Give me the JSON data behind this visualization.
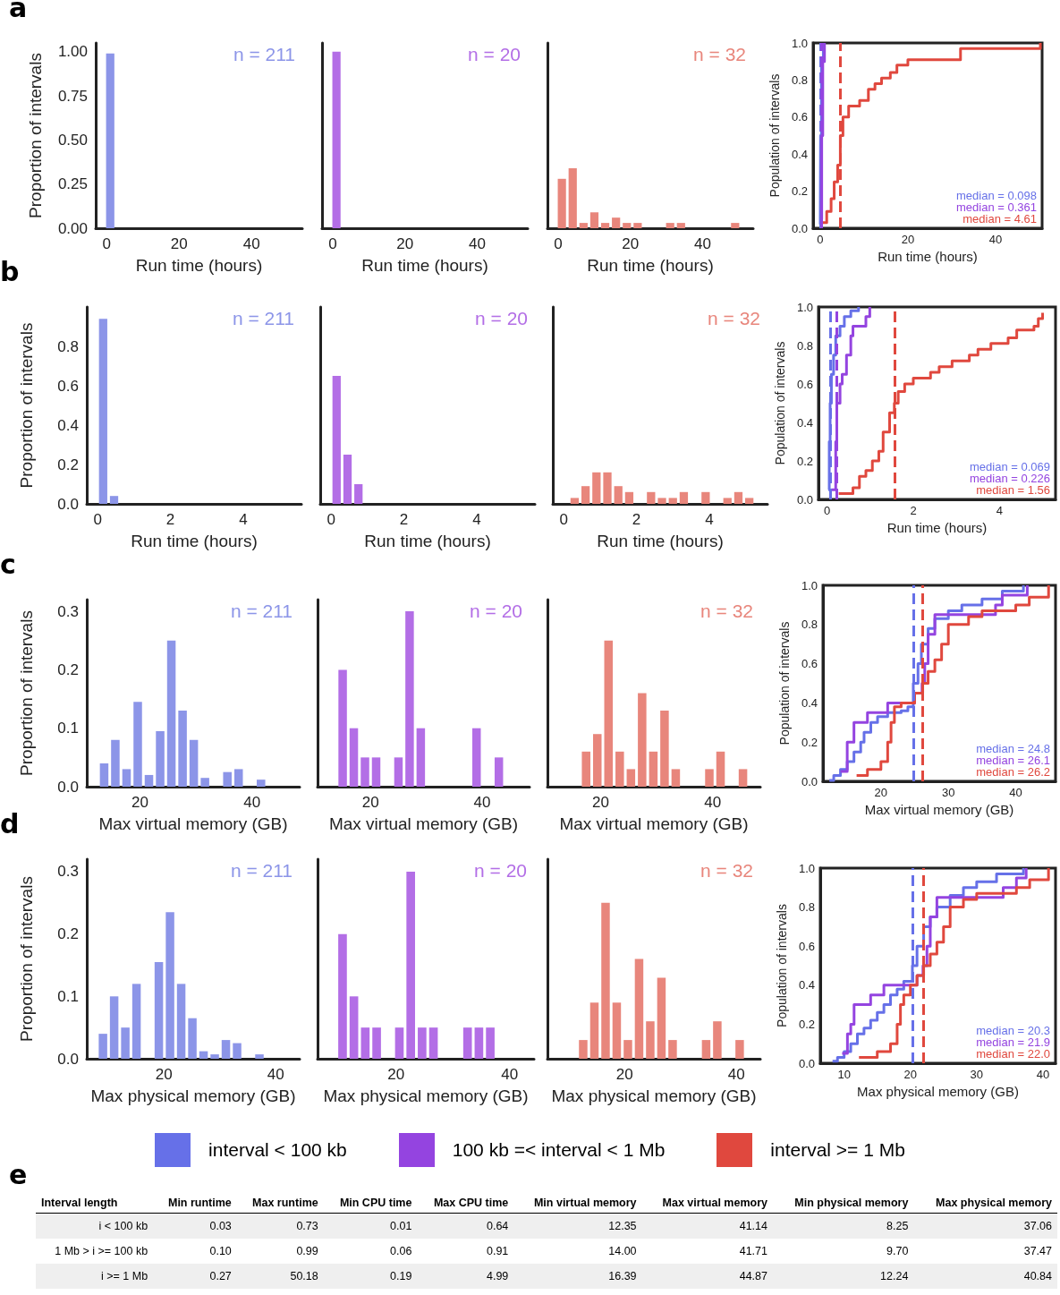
{
  "chart_data": [
    {
      "type": "histogram",
      "title": "a",
      "xlabel": "Run time (hours)",
      "ylabel": "Proportion of intervals",
      "xlim": [
        -3,
        54
      ],
      "xticks": [
        0,
        20,
        40
      ],
      "ylim": [
        0,
        1.05
      ],
      "yticks": [
        {
          "value": 0,
          "label": "0.00"
        },
        {
          "value": 0.25,
          "label": "0.25"
        },
        {
          "value": 0.5,
          "label": "0.50"
        },
        {
          "value": 0.75,
          "label": "0.75"
        },
        {
          "value": 1,
          "label": "1.00"
        }
      ],
      "annotations": [
        "n = 211"
      ],
      "bins": [
        -0.5,
        2.5
      ],
      "series": [
        {
          "color": "#8c95e8",
          "values": [
            0.99
          ]
        }
      ]
    },
    {
      "type": "histogram",
      "xlabel": "Run time (hours)",
      "xlim": [
        -3,
        54
      ],
      "xticks": [
        0,
        20,
        40
      ],
      "ylim": [
        0,
        1.05
      ],
      "tick_labels": "x",
      "annotations": [
        "n = 20"
      ],
      "bins": [
        -0.5,
        2.5
      ],
      "series": [
        {
          "color": "#b36ee6",
          "values": [
            1.0
          ]
        }
      ]
    },
    {
      "type": "histogram",
      "xlabel": "Run time (hours)",
      "xlim": [
        -3,
        54
      ],
      "xticks": [
        0,
        20,
        40
      ],
      "ylim": [
        0,
        1.05
      ],
      "tick_labels": "x",
      "annotations": [
        "n = 32"
      ],
      "bins": [
        -0.5,
        2.5,
        5.5,
        8.5,
        11.5,
        14.5,
        17.5,
        20.5,
        23.5,
        26.5,
        29.5,
        32.5,
        35.5,
        38.5,
        41.5,
        44.5,
        47.5,
        50.5
      ],
      "series": [
        {
          "color": "#e8867c",
          "values": [
            0.28,
            0.34,
            0.03,
            0.09,
            0.03,
            0.06,
            0.03,
            0.03,
            0,
            0,
            0.03,
            0.03,
            0,
            0,
            0,
            0,
            0.03
          ]
        }
      ]
    },
    {
      "type": "step",
      "xlabel": "Run time (hours)",
      "ylabel": "Population of intervals",
      "xlim": [
        -1.6,
        50.6
      ],
      "xticks": [
        0,
        20,
        40
      ],
      "ylim": [
        0,
        1
      ],
      "yticks": [
        {
          "value": 0,
          "label": "0.0"
        },
        0.2,
        0.4,
        0.6,
        0.8,
        {
          "value": 1,
          "label": "1.0"
        }
      ],
      "annotations": [
        "median = 0.098",
        "median = 0.361",
        "median = 4.61"
      ],
      "ref_lines": [
        {
          "axis": "x",
          "value": 0.098,
          "color": "#6670e8",
          "line_style": "dashed"
        },
        {
          "axis": "x",
          "value": 0.361,
          "color": "#9444e0",
          "line_style": "dashed"
        },
        {
          "axis": "x",
          "value": 4.61,
          "color": "#e0483e",
          "line_style": "dashed"
        }
      ],
      "series": [
        {
          "color": "#6670e8",
          "x": [
            0.03,
            0.1,
            0.3,
            0.73
          ],
          "values": [
            0.02,
            0.5,
            0.9,
            1.0
          ]
        },
        {
          "color": "#9444e0",
          "x": [
            0.1,
            0.36,
            0.6,
            0.99
          ],
          "values": [
            0.05,
            0.5,
            0.9,
            1.0
          ]
        },
        {
          "color": "#e0483e",
          "x": [
            0.27,
            1.5,
            2.5,
            3.2,
            4,
            4.6,
            5.2,
            6.5,
            9,
            11,
            12.5,
            14,
            16,
            17.5,
            20,
            32,
            50.2
          ],
          "values": [
            0.03,
            0.09,
            0.16,
            0.25,
            0.34,
            0.5,
            0.6,
            0.66,
            0.69,
            0.75,
            0.78,
            0.81,
            0.84,
            0.88,
            0.91,
            0.97,
            1.0
          ]
        }
      ]
    },
    {
      "type": "histogram",
      "title": "b",
      "xlabel": "Run time (hours)",
      "ylabel": "Proportion of intervals",
      "xlim": [
        -0.3,
        5.6
      ],
      "xticks": [
        0,
        2,
        4
      ],
      "ylim": [
        0,
        1
      ],
      "yticks": [
        {
          "value": 0,
          "label": "0.0"
        },
        0.2,
        0.4,
        0.6,
        0.8
      ],
      "annotations": [
        "n = 211"
      ],
      "bins": [
        0,
        0.3,
        0.6
      ],
      "series": [
        {
          "color": "#8c95e8",
          "values": [
            0.94,
            0.04
          ]
        }
      ]
    },
    {
      "type": "histogram",
      "xlabel": "Run time (hours)",
      "xlim": [
        -0.3,
        5.6
      ],
      "xticks": [
        0,
        2,
        4
      ],
      "ylim": [
        0,
        1
      ],
      "tick_labels": "x",
      "annotations": [
        "n = 20"
      ],
      "bins": [
        0,
        0.3,
        0.6,
        0.9
      ],
      "series": [
        {
          "color": "#b36ee6",
          "values": [
            0.65,
            0.25,
            0.1
          ]
        }
      ]
    },
    {
      "type": "histogram",
      "xlabel": "Run time (hours)",
      "xlim": [
        -0.3,
        5.6
      ],
      "xticks": [
        0,
        2,
        4
      ],
      "ylim": [
        0,
        1
      ],
      "tick_labels": "x",
      "annotations": [
        "n = 32"
      ],
      "bins": [
        0.15,
        0.45,
        0.75,
        1.05,
        1.35,
        1.65,
        1.95,
        2.25,
        2.55,
        2.85,
        3.15,
        3.45,
        3.75,
        4.05,
        4.35,
        4.65,
        4.95,
        5.25
      ],
      "series": [
        {
          "color": "#e8867c",
          "values": [
            0.03,
            0.09,
            0.16,
            0.16,
            0.09,
            0.06,
            0,
            0.06,
            0.03,
            0.03,
            0.06,
            0,
            0.06,
            0,
            0.03,
            0.06,
            0.03
          ]
        }
      ]
    },
    {
      "type": "step",
      "xlabel": "Run time (hours)",
      "ylabel": "Population of intervals",
      "xlim": [
        -0.2,
        5.3
      ],
      "xticks": [
        0,
        2,
        4
      ],
      "ylim": [
        0,
        1
      ],
      "yticks": [
        {
          "value": 0,
          "label": "0.0"
        },
        0.2,
        0.4,
        0.6,
        0.8,
        {
          "value": 1,
          "label": "1.0"
        }
      ],
      "annotations": [
        "median = 0.069",
        "median = 0.226",
        "median = 1.56"
      ],
      "ref_lines": [
        {
          "axis": "x",
          "value": 0.069,
          "color": "#6670e8",
          "line_style": "dashed"
        },
        {
          "axis": "x",
          "value": 0.226,
          "color": "#9444e0",
          "line_style": "dashed"
        },
        {
          "axis": "x",
          "value": 1.56,
          "color": "#e0483e",
          "line_style": "dashed"
        }
      ],
      "series": [
        {
          "color": "#6670e8",
          "x": [
            0.03,
            0.05,
            0.07,
            0.1,
            0.15,
            0.2,
            0.3,
            0.4,
            0.55,
            0.73
          ],
          "values": [
            0.05,
            0.3,
            0.5,
            0.65,
            0.75,
            0.85,
            0.9,
            0.95,
            0.98,
            1.0
          ]
        },
        {
          "color": "#9444e0",
          "x": [
            0.1,
            0.2,
            0.226,
            0.3,
            0.35,
            0.45,
            0.55,
            0.6,
            0.9,
            0.99
          ],
          "values": [
            0.05,
            0.3,
            0.5,
            0.6,
            0.65,
            0.75,
            0.85,
            0.9,
            0.95,
            1.0
          ]
        },
        {
          "color": "#e0483e",
          "x": [
            0.27,
            0.6,
            0.75,
            0.9,
            1.05,
            1.2,
            1.3,
            1.45,
            1.56,
            1.65,
            1.8,
            2.0,
            2.4,
            2.6,
            2.9,
            3.3,
            3.5,
            3.8,
            4.2,
            4.4,
            4.8,
            4.9,
            5.0
          ],
          "values": [
            0.03,
            0.06,
            0.12,
            0.15,
            0.2,
            0.25,
            0.35,
            0.45,
            0.5,
            0.56,
            0.6,
            0.63,
            0.66,
            0.69,
            0.72,
            0.75,
            0.78,
            0.81,
            0.84,
            0.88,
            0.9,
            0.94,
            0.97
          ]
        }
      ]
    },
    {
      "type": "histogram",
      "title": "c",
      "xlabel": "Max virtual memory (GB)",
      "ylabel": "Proportion of intervals",
      "xlim": [
        10.5,
        48.5
      ],
      "xticks": [
        20,
        40
      ],
      "ylim": [
        0,
        0.32
      ],
      "yticks": [
        {
          "value": 0,
          "label": "0.0"
        },
        0.1,
        0.2,
        0.3
      ],
      "annotations": [
        "n = 211"
      ],
      "bins": [
        12.6,
        14.6,
        16.6,
        18.6,
        20.6,
        22.6,
        24.6,
        26.6,
        28.6,
        30.6,
        32.6,
        34.6,
        36.6,
        38.6,
        40.6,
        42.6
      ],
      "series": [
        {
          "color": "#8c95e8",
          "values": [
            0.04,
            0.08,
            0.03,
            0.145,
            0.02,
            0.095,
            0.25,
            0.13,
            0.08,
            0.015,
            0,
            0.025,
            0.03,
            0,
            0.012
          ]
        }
      ]
    },
    {
      "type": "histogram",
      "xlabel": "Max virtual memory (GB)",
      "xlim": [
        10.5,
        48.5
      ],
      "xticks": [
        20,
        40
      ],
      "ylim": [
        0,
        0.32
      ],
      "tick_labels": "x",
      "annotations": [
        "n = 20"
      ],
      "bins": [
        14,
        16,
        18,
        20,
        22,
        24,
        26,
        28,
        30,
        32,
        34,
        36,
        38,
        40,
        42,
        44
      ],
      "series": [
        {
          "color": "#b36ee6",
          "values": [
            0.2,
            0.1,
            0.05,
            0.05,
            0,
            0.05,
            0.3,
            0.1,
            0,
            0,
            0,
            0,
            0.1,
            0,
            0.05
          ]
        }
      ]
    },
    {
      "type": "histogram",
      "xlabel": "Max virtual memory (GB)",
      "xlim": [
        10.5,
        48.5
      ],
      "xticks": [
        20,
        40
      ],
      "ylim": [
        0,
        0.32
      ],
      "tick_labels": "x",
      "annotations": [
        "n = 32"
      ],
      "bins": [
        16.4,
        18.4,
        20.4,
        22.4,
        24.4,
        26.4,
        28.4,
        30.4,
        32.4,
        34.4,
        36.4,
        38.4,
        40.4,
        42.4,
        44.4,
        46.4
      ],
      "series": [
        {
          "color": "#e8867c",
          "values": [
            0.06,
            0.09,
            0.25,
            0.06,
            0.03,
            0.16,
            0.06,
            0.13,
            0.03,
            0,
            0,
            0.03,
            0.06,
            0,
            0.03
          ]
        }
      ]
    },
    {
      "type": "step",
      "xlabel": "Max virtual memory (GB)",
      "ylabel": "Population of intervals",
      "xlim": [
        11.4,
        45.9
      ],
      "xticks": [
        20,
        30,
        40
      ],
      "ylim": [
        0,
        1
      ],
      "yticks": [
        {
          "value": 0,
          "label": "0.0"
        },
        0.2,
        0.4,
        0.6,
        0.8,
        {
          "value": 1,
          "label": "1.0"
        }
      ],
      "annotations": [
        "median = 24.8",
        "median = 26.1",
        "median = 26.2"
      ],
      "ref_lines": [
        {
          "axis": "x",
          "value": 24.8,
          "color": "#6670e8",
          "line_style": "dashed"
        },
        {
          "axis": "x",
          "value": 26.2,
          "color": "#e0483e",
          "line_style": "dashed"
        }
      ],
      "series": [
        {
          "color": "#6670e8",
          "x": [
            12.35,
            13,
            14,
            15,
            16,
            17,
            17.5,
            18.5,
            19.5,
            21,
            23,
            24,
            24.8,
            25.5,
            26,
            27,
            28,
            30,
            32,
            35,
            38,
            41.14
          ],
          "values": [
            0.005,
            0.03,
            0.06,
            0.1,
            0.15,
            0.2,
            0.25,
            0.3,
            0.33,
            0.35,
            0.36,
            0.38,
            0.5,
            0.6,
            0.7,
            0.78,
            0.83,
            0.87,
            0.9,
            0.93,
            0.97,
            1.0
          ]
        },
        {
          "color": "#9444e0",
          "x": [
            14,
            15,
            16,
            18,
            21,
            25,
            26.1,
            26.5,
            27,
            28,
            36,
            37,
            38,
            41.71
          ],
          "values": [
            0.05,
            0.2,
            0.3,
            0.35,
            0.4,
            0.45,
            0.5,
            0.6,
            0.75,
            0.85,
            0.85,
            0.9,
            0.95,
            1.0
          ]
        },
        {
          "color": "#e0483e",
          "x": [
            16.39,
            18,
            20,
            21,
            21.5,
            22,
            23,
            25,
            26.2,
            27,
            28,
            29,
            30,
            33,
            35,
            40,
            42,
            44.87
          ],
          "values": [
            0.03,
            0.06,
            0.1,
            0.2,
            0.3,
            0.38,
            0.4,
            0.45,
            0.5,
            0.56,
            0.62,
            0.7,
            0.8,
            0.84,
            0.87,
            0.9,
            0.94,
            1.0
          ]
        }
      ]
    },
    {
      "type": "histogram",
      "title": "d",
      "xlabel": "Max physical memory (GB)",
      "ylabel": "Proportion of intervals",
      "xlim": [
        6.2,
        44.3
      ],
      "xticks": [
        20,
        40
      ],
      "ylim": [
        0,
        0.32
      ],
      "yticks": [
        {
          "value": 0,
          "label": "0.0"
        },
        0.1,
        0.2,
        0.3
      ],
      "annotations": [
        "n = 211"
      ],
      "bins": [
        8.1,
        10.1,
        12.1,
        14.1,
        16.1,
        18.1,
        20.1,
        22.1,
        24.1,
        26.1,
        28.1,
        30.1,
        32.1,
        34.1,
        36.1,
        38.1
      ],
      "series": [
        {
          "color": "#8c95e8",
          "values": [
            0.04,
            0.1,
            0.05,
            0.12,
            0,
            0.155,
            0.235,
            0.12,
            0.065,
            0.012,
            0.007,
            0.03,
            0.025,
            0,
            0.007
          ]
        }
      ]
    },
    {
      "type": "histogram",
      "xlabel": "Max physical memory (GB)",
      "xlim": [
        6.2,
        44.3
      ],
      "xticks": [
        20,
        40
      ],
      "ylim": [
        0,
        0.32
      ],
      "tick_labels": "x",
      "annotations": [
        "n = 20"
      ],
      "bins": [
        9.6,
        11.6,
        13.6,
        15.6,
        17.6,
        19.6,
        21.6,
        23.6,
        25.6,
        27.6,
        29.6,
        31.6,
        33.6,
        35.6,
        37.6
      ],
      "series": [
        {
          "color": "#b36ee6",
          "values": [
            0.2,
            0.1,
            0.05,
            0.05,
            0,
            0.05,
            0.3,
            0.05,
            0.05,
            0,
            0,
            0.05,
            0.05,
            0.05
          ]
        }
      ]
    },
    {
      "type": "histogram",
      "xlabel": "Max physical memory (GB)",
      "xlim": [
        6.2,
        44.3
      ],
      "xticks": [
        20,
        40
      ],
      "ylim": [
        0,
        0.32
      ],
      "tick_labels": "x",
      "annotations": [
        "n = 32"
      ],
      "bins": [
        11.6,
        13.6,
        15.6,
        17.6,
        19.6,
        21.6,
        23.6,
        25.6,
        27.6,
        29.6,
        31.6,
        33.6,
        35.6,
        37.6,
        39.6,
        41.6
      ],
      "series": [
        {
          "color": "#e8867c",
          "values": [
            0.03,
            0.09,
            0.25,
            0.09,
            0.03,
            0.16,
            0.06,
            0.13,
            0.03,
            0,
            0,
            0.03,
            0.06,
            0,
            0.03
          ]
        }
      ]
    },
    {
      "type": "step",
      "xlabel": "Max physical memory (GB)",
      "ylabel": "Population of intervals",
      "xlim": [
        6.4,
        41.9
      ],
      "xticks": [
        10,
        20,
        30,
        40
      ],
      "ylim": [
        0,
        1
      ],
      "yticks": [
        {
          "value": 0,
          "label": "0.0"
        },
        0.2,
        0.4,
        0.6,
        0.8,
        {
          "value": 1,
          "label": "1.0"
        }
      ],
      "annotations": [
        "median = 20.3",
        "median = 21.9",
        "median = 22.0"
      ],
      "legend": "bottom",
      "ref_lines": [
        {
          "axis": "x",
          "value": 20.3,
          "color": "#6670e8",
          "line_style": "dashed"
        },
        {
          "axis": "x",
          "value": 22.0,
          "color": "#e0483e",
          "line_style": "dashed"
        }
      ],
      "series": [
        {
          "name": "interval < 100 kb",
          "color": "#6670e8",
          "x": [
            8.25,
            9,
            10,
            11,
            12,
            13,
            14,
            15,
            16,
            17,
            18,
            19,
            20.3,
            21,
            22,
            23,
            24,
            26,
            28,
            30,
            33,
            37.06
          ],
          "values": [
            0.01,
            0.03,
            0.06,
            0.1,
            0.15,
            0.18,
            0.22,
            0.26,
            0.3,
            0.35,
            0.38,
            0.42,
            0.5,
            0.6,
            0.7,
            0.75,
            0.8,
            0.86,
            0.9,
            0.93,
            0.97,
            1.0
          ]
        },
        {
          "name": "100 kb =< interval < 1 Mb",
          "color": "#9444e0",
          "x": [
            9.7,
            10.5,
            11,
            11.5,
            14,
            16,
            21,
            21.9,
            22.5,
            23,
            24,
            33,
            34,
            36,
            37.47
          ],
          "values": [
            0.05,
            0.15,
            0.2,
            0.3,
            0.35,
            0.4,
            0.45,
            0.5,
            0.6,
            0.75,
            0.85,
            0.85,
            0.9,
            0.95,
            1.0
          ]
        },
        {
          "name": "interval >= 1 Mb",
          "color": "#e0483e",
          "x": [
            12.24,
            15,
            17,
            18,
            18.5,
            19,
            20,
            21,
            22,
            23,
            24,
            25,
            26,
            28,
            30,
            36,
            38,
            40.84
          ],
          "values": [
            0.03,
            0.06,
            0.1,
            0.2,
            0.3,
            0.35,
            0.4,
            0.45,
            0.5,
            0.56,
            0.62,
            0.7,
            0.8,
            0.84,
            0.87,
            0.9,
            0.94,
            1.0
          ]
        }
      ]
    },
    {
      "type": "other",
      "title": "e",
      "ylabel": "Interval length",
      "categories": [
        "Min runtime",
        "Max runtime",
        "Min CPU time",
        "Max CPU time",
        "Min virtual memory",
        "Max virtual memory",
        "Min physical memory",
        "Max physical memory"
      ],
      "y_categories": [
        "i < 100 kb",
        "1 Mb > i >= 100 kb",
        "i >= 1 Mb"
      ],
      "cell_labels": [
        [
          "0.03",
          "0.73",
          "0.01",
          "0.64",
          "12.35",
          "41.14",
          "8.25",
          "37.06"
        ],
        [
          "0.10",
          "0.99",
          "0.06",
          "0.91",
          "14.00",
          "41.71",
          "9.70",
          "37.47"
        ],
        [
          "0.27",
          "50.18",
          "0.19",
          "4.99",
          "16.39",
          "44.87",
          "12.24",
          "40.84"
        ]
      ]
    }
  ]
}
